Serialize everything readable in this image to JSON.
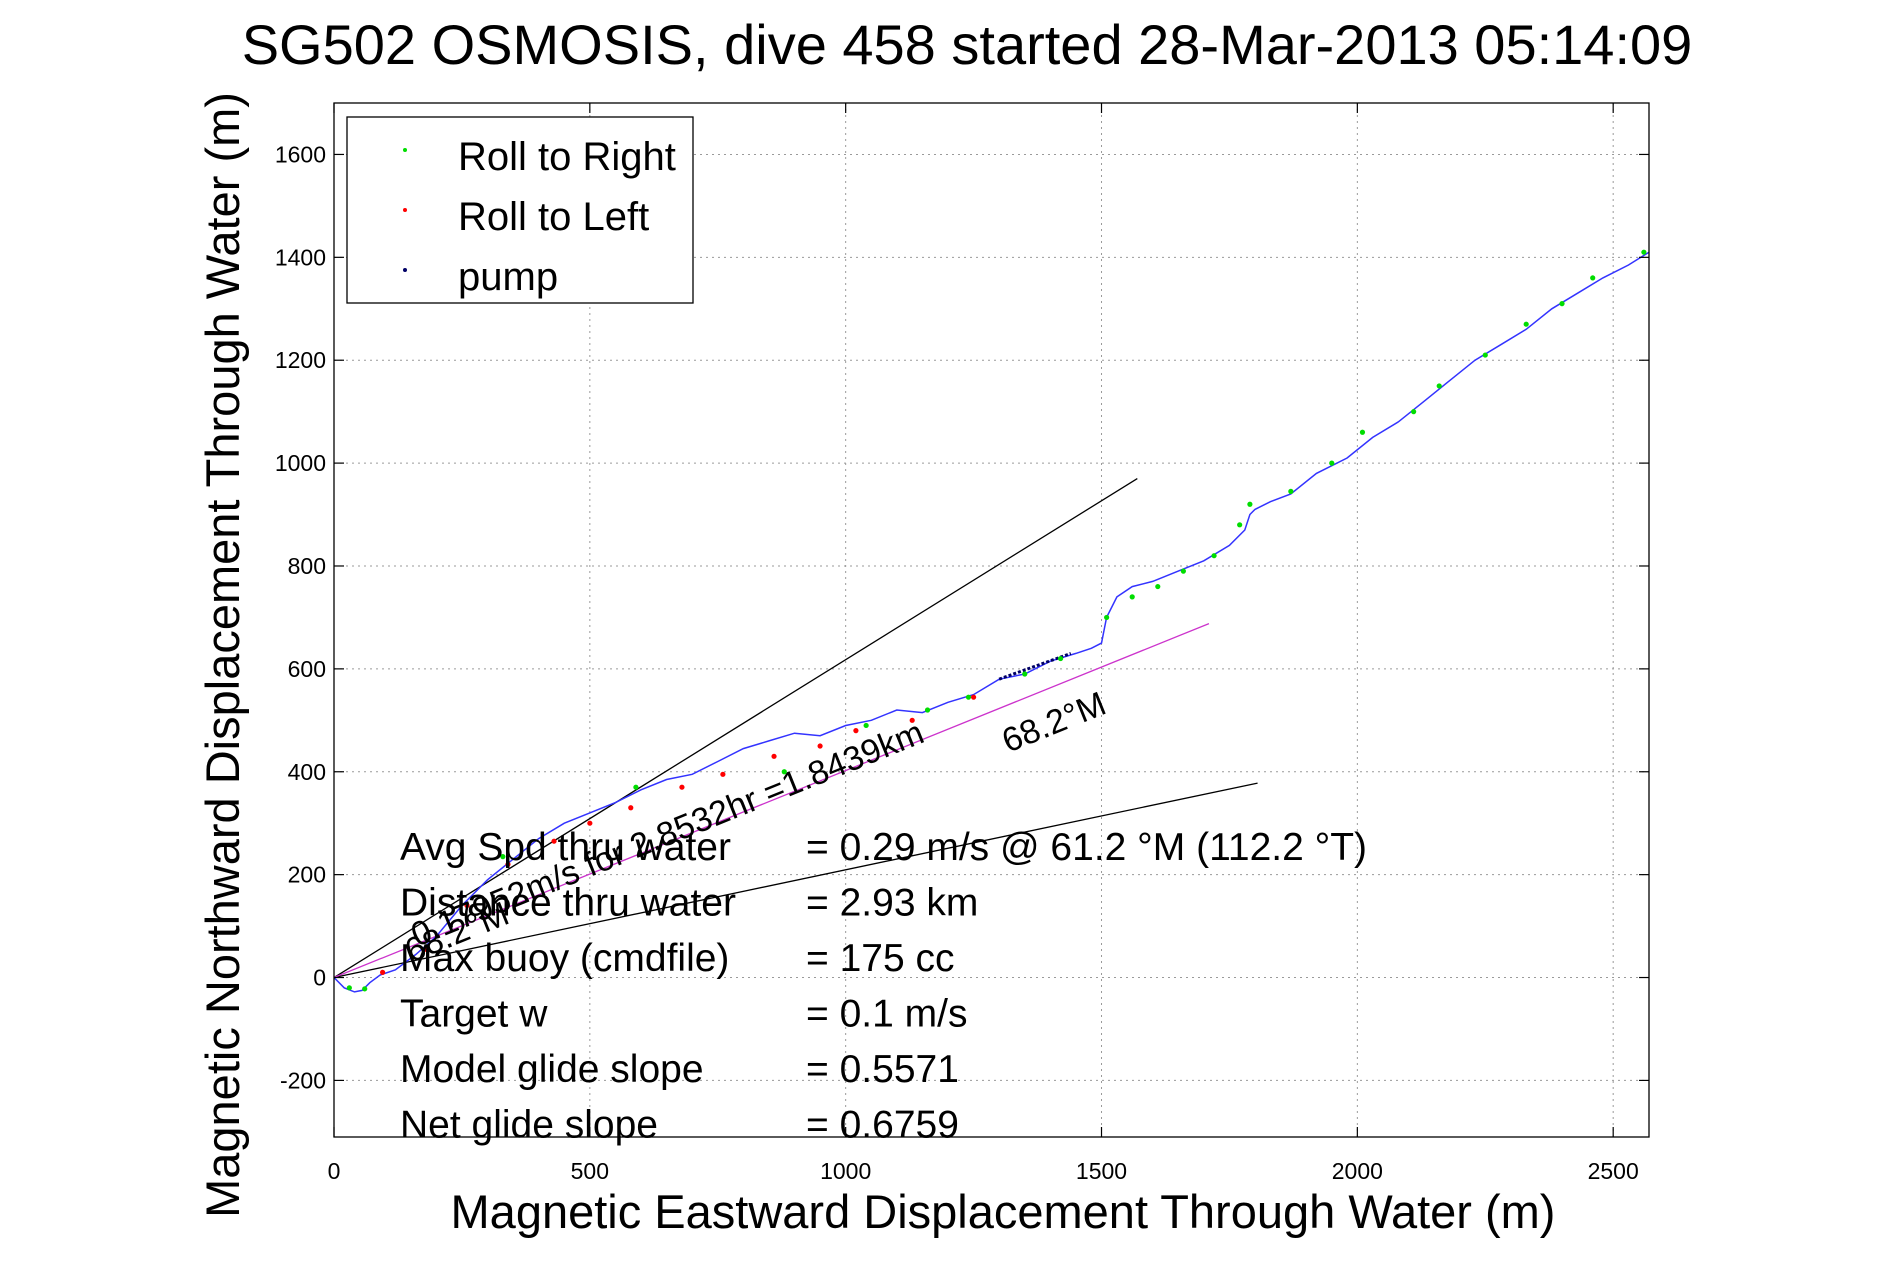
{
  "chart_data": {
    "type": "line",
    "title": "SG502 OSMOSIS, dive 458 started 28-Mar-2013 05:14:09",
    "xlabel": "Magnetic Eastward Displacement Through Water (m)",
    "ylabel": "Magnetic Northward Displacement Through Water (m)",
    "xlim": [
      0,
      2570
    ],
    "ylim": [
      -310,
      1700
    ],
    "xticks": [
      0,
      500,
      1000,
      1500,
      2000,
      2500
    ],
    "yticks": [
      -200,
      0,
      200,
      400,
      600,
      800,
      1000,
      1200,
      1400,
      1600
    ],
    "grid": true,
    "legend": {
      "placement": "top-left",
      "entries": [
        {
          "label": "Roll to Right",
          "color": "#00dd00"
        },
        {
          "label": "Roll to Left",
          "color": "#ff0000"
        },
        {
          "label": "pump",
          "color": "#000066"
        }
      ]
    },
    "series": [
      {
        "color": "#3333ff",
        "x": [
          0,
          20,
          40,
          55,
          70,
          90,
          120,
          160,
          200,
          250,
          300,
          350,
          400,
          450,
          500,
          550,
          600,
          650,
          700,
          750,
          800,
          850,
          900,
          950,
          1000,
          1050,
          1100,
          1150,
          1200,
          1250,
          1300,
          1350,
          1400,
          1450,
          1480,
          1500,
          1510,
          1530,
          1560,
          1600,
          1650,
          1700,
          1750,
          1780,
          1790,
          1800,
          1830,
          1870,
          1920,
          1980,
          2030,
          2080,
          2130,
          2180,
          2230,
          2280,
          2330,
          2380,
          2430,
          2480,
          2530,
          2570
        ],
        "y": [
          0,
          -20,
          -28,
          -25,
          -10,
          5,
          15,
          45,
          80,
          140,
          190,
          230,
          270,
          300,
          320,
          340,
          365,
          385,
          395,
          420,
          445,
          460,
          475,
          470,
          490,
          500,
          520,
          515,
          535,
          550,
          580,
          590,
          615,
          630,
          640,
          650,
          700,
          740,
          760,
          770,
          790,
          810,
          840,
          870,
          900,
          910,
          925,
          940,
          980,
          1010,
          1050,
          1080,
          1120,
          1160,
          1200,
          1230,
          1260,
          1300,
          1330,
          1360,
          1385,
          1410
        ]
      }
    ],
    "reference_lines": [
      {
        "color": "#000000",
        "x": [
          0,
          1570
        ],
        "y": [
          0,
          970
        ]
      },
      {
        "color": "#000000",
        "x": [
          0,
          1805
        ],
        "y": [
          0,
          378
        ]
      },
      {
        "color": "#cc33cc",
        "x": [
          0,
          1710
        ],
        "y": [
          0,
          688
        ]
      }
    ],
    "pump_segment": {
      "color": "#000066",
      "x": [
        1300,
        1440
      ],
      "y": [
        580,
        630
      ]
    },
    "roll_right_points": {
      "x": [
        30,
        60,
        330,
        590,
        880,
        1040,
        1160,
        1240,
        1350,
        1420,
        1510,
        1560,
        1610,
        1660,
        1720,
        1770,
        1790,
        1870,
        1950,
        2010,
        2110,
        2160,
        2250,
        2330,
        2400,
        2460,
        2560
      ],
      "y": [
        -20,
        -22,
        235,
        370,
        400,
        490,
        520,
        545,
        590,
        620,
        700,
        740,
        760,
        790,
        820,
        880,
        920,
        945,
        1000,
        1060,
        1100,
        1150,
        1210,
        1270,
        1310,
        1360,
        1410
      ]
    },
    "roll_left_points": {
      "x": [
        95,
        180,
        260,
        340,
        430,
        500,
        580,
        680,
        760,
        860,
        950,
        1020,
        1130,
        1250
      ],
      "y": [
        10,
        55,
        140,
        220,
        265,
        300,
        330,
        370,
        395,
        430,
        450,
        480,
        500,
        545
      ]
    },
    "stats": [
      {
        "label": "Avg Spd thru water",
        "value": "=  0.29 m/s @  61.2 °M (112.2 °T)"
      },
      {
        "label": "Distance thru water",
        "value": "=  2.93 km"
      },
      {
        "label": "Max buoy (cmdfile)",
        "value": "= 175 cc"
      },
      {
        "label": "Target w",
        "value": "= 0.1 m/s"
      },
      {
        "label": "Model glide slope",
        "value": "= 0.5571"
      },
      {
        "label": "Net glide slope",
        "value": "= 0.6759"
      }
    ],
    "annotations": {
      "speed_along": "0.17952m/s for 2.8532hr =1.8439km",
      "heading_mid": "68.2°M",
      "heading_low": "68.2°M"
    }
  }
}
